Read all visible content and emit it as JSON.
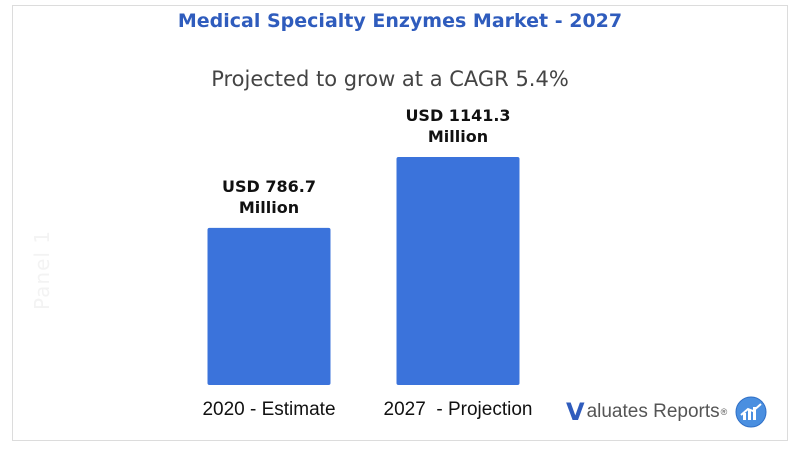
{
  "header": {
    "title": "Medical Specialty Enzymes Market - 2027",
    "subtitle": "Projected to grow at a CAGR 5.4%"
  },
  "watermark": "Panel 1",
  "branding": {
    "logo_letter": "V",
    "logo_text": "aluates Reports",
    "logo_reg": "®",
    "icon": "chart-globe-icon"
  },
  "colors": {
    "bar": "#3b73db",
    "title": "#2f5cbd"
  },
  "chart_data": {
    "type": "bar",
    "title": "Medical Specialty Enzymes Market - 2027",
    "subtitle": "Projected to grow at a CAGR 5.4%",
    "categories": [
      "2020 - Estimate",
      "2027  - Projection"
    ],
    "values": [
      786.7,
      1141.3
    ],
    "data_labels": [
      [
        "USD 786.7",
        "Million"
      ],
      [
        "USD 1141.3",
        "Million"
      ]
    ],
    "unit": "USD Million",
    "ylim": [
      0,
      1400
    ],
    "grid": false,
    "legend": "none"
  }
}
